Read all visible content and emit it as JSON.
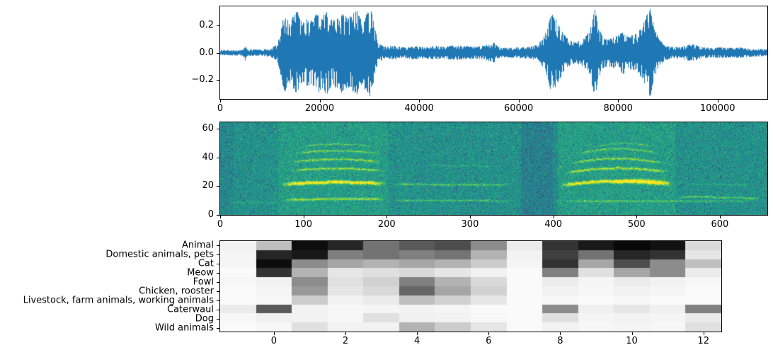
{
  "figure": {
    "background": "#ffffff",
    "description": "Audio event analysis figure: waveform, mel spectrogram, and classifier score heatmap"
  },
  "chart_data": [
    {
      "id": "waveform",
      "type": "line",
      "role": "audio-waveform",
      "title": "",
      "xlabel": "",
      "ylabel": "",
      "line_color": "#1f77b4",
      "grid": false,
      "legend": false,
      "xlim": [
        0,
        110000
      ],
      "ylim": [
        -0.34,
        0.34
      ],
      "xticks": [
        0,
        20000,
        40000,
        60000,
        80000,
        100000
      ],
      "xtick_labels": [
        "0",
        "20000",
        "40000",
        "60000",
        "80000",
        "100000"
      ],
      "yticks": [
        -0.2,
        0.0,
        0.2
      ],
      "ytick_labels": [
        "−0.2",
        "0.0",
        "0.2"
      ],
      "envelope": [
        [
          0,
          0.018
        ],
        [
          2000,
          0.02
        ],
        [
          4600,
          0.022
        ],
        [
          5000,
          0.07
        ],
        [
          5400,
          0.025
        ],
        [
          8000,
          0.022
        ],
        [
          10000,
          0.03
        ],
        [
          11500,
          0.06
        ],
        [
          12200,
          0.18
        ],
        [
          13000,
          0.3
        ],
        [
          13800,
          0.22
        ],
        [
          14500,
          0.26
        ],
        [
          15500,
          0.31
        ],
        [
          16500,
          0.22
        ],
        [
          17500,
          0.26
        ],
        [
          18500,
          0.24
        ],
        [
          19500,
          0.31
        ],
        [
          20500,
          0.26
        ],
        [
          21500,
          0.33
        ],
        [
          22500,
          0.24
        ],
        [
          23500,
          0.27
        ],
        [
          24500,
          0.3
        ],
        [
          25500,
          0.26
        ],
        [
          26500,
          0.29
        ],
        [
          27500,
          0.31
        ],
        [
          28500,
          0.24
        ],
        [
          29500,
          0.29
        ],
        [
          30300,
          0.33
        ],
        [
          31000,
          0.2
        ],
        [
          31800,
          0.07
        ],
        [
          33000,
          0.045
        ],
        [
          35000,
          0.05
        ],
        [
          37000,
          0.04
        ],
        [
          39000,
          0.05
        ],
        [
          41000,
          0.04
        ],
        [
          43000,
          0.05
        ],
        [
          45000,
          0.045
        ],
        [
          47000,
          0.055
        ],
        [
          49000,
          0.05
        ],
        [
          51000,
          0.045
        ],
        [
          53000,
          0.05
        ],
        [
          55000,
          0.075
        ],
        [
          56000,
          0.04
        ],
        [
          58000,
          0.035
        ],
        [
          60000,
          0.04
        ],
        [
          62000,
          0.045
        ],
        [
          64000,
          0.06
        ],
        [
          65500,
          0.15
        ],
        [
          66500,
          0.29
        ],
        [
          67500,
          0.25
        ],
        [
          68500,
          0.18
        ],
        [
          69500,
          0.12
        ],
        [
          70500,
          0.09
        ],
        [
          71500,
          0.08
        ],
        [
          73000,
          0.1
        ],
        [
          74300,
          0.16
        ],
        [
          75300,
          0.33
        ],
        [
          76000,
          0.22
        ],
        [
          76800,
          0.12
        ],
        [
          78000,
          0.1
        ],
        [
          79500,
          0.12
        ],
        [
          81000,
          0.16
        ],
        [
          82000,
          0.12
        ],
        [
          83500,
          0.14
        ],
        [
          84800,
          0.19
        ],
        [
          85800,
          0.3
        ],
        [
          86500,
          0.33
        ],
        [
          87300,
          0.18
        ],
        [
          88300,
          0.1
        ],
        [
          89300,
          0.06
        ],
        [
          91000,
          0.04
        ],
        [
          93000,
          0.05
        ],
        [
          95000,
          0.065
        ],
        [
          97000,
          0.04
        ],
        [
          99000,
          0.035
        ],
        [
          101000,
          0.04
        ],
        [
          103000,
          0.035
        ],
        [
          105000,
          0.04
        ],
        [
          107000,
          0.03
        ],
        [
          110000,
          0.025
        ]
      ]
    },
    {
      "id": "spectrogram",
      "type": "heatmap",
      "role": "mel-spectrogram",
      "title": "",
      "xlabel": "",
      "ylabel": "",
      "colormap": "viridis",
      "grid": false,
      "legend": false,
      "xlim": [
        0,
        657
      ],
      "ylim": [
        0,
        64.5
      ],
      "xticks": [
        0,
        100,
        200,
        300,
        400,
        500,
        600
      ],
      "xtick_labels": [
        "0",
        "100",
        "200",
        "300",
        "400",
        "500",
        "600"
      ],
      "yticks": [
        0,
        20,
        40,
        60
      ],
      "ytick_labels": [
        "0",
        "20",
        "40",
        "60"
      ],
      "intensity_regions": [
        [
          70,
          200,
          0.05
        ],
        [
          400,
          545,
          0.05
        ],
        [
          362,
          404,
          -0.07
        ],
        [
          0,
          15,
          -0.04
        ]
      ],
      "harmonics": [
        {
          "x0": 8,
          "x1": 70,
          "y0": 9,
          "y1": 9,
          "arc": 0,
          "amp": 0.1,
          "w": 1.5
        },
        {
          "x0": 72,
          "x1": 200,
          "y0": 21.5,
          "y1": 22,
          "arc": 1.2,
          "amp": 0.55,
          "w": 3.2
        },
        {
          "x0": 74,
          "x1": 200,
          "y0": 10.5,
          "y1": 11,
          "arc": 0.5,
          "amp": 0.3,
          "w": 2.4
        },
        {
          "x0": 82,
          "x1": 196,
          "y0": 31,
          "y1": 31,
          "arc": 1.5,
          "amp": 0.3,
          "w": 2.0
        },
        {
          "x0": 84,
          "x1": 194,
          "y0": 37,
          "y1": 37,
          "arc": 2,
          "amp": 0.27,
          "w": 2.0
        },
        {
          "x0": 88,
          "x1": 190,
          "y0": 43,
          "y1": 43,
          "arc": 2,
          "amp": 0.24,
          "w": 1.8
        },
        {
          "x0": 95,
          "x1": 185,
          "y0": 48,
          "y1": 48,
          "arc": 1.5,
          "amp": 0.18,
          "w": 1.6
        },
        {
          "x0": 200,
          "x1": 352,
          "y0": 22,
          "y1": 21.5,
          "arc": -0.5,
          "amp": 0.22,
          "w": 2.0
        },
        {
          "x0": 200,
          "x1": 352,
          "y0": 10.5,
          "y1": 10,
          "arc": 0,
          "amp": 0.2,
          "w": 1.8
        },
        {
          "x0": 240,
          "x1": 330,
          "y0": 35,
          "y1": 34,
          "arc": 0,
          "amp": 0.1,
          "w": 1.5
        },
        {
          "x0": 405,
          "x1": 545,
          "y0": 20.5,
          "y1": 21,
          "arc": 3,
          "amp": 0.5,
          "w": 3.2
        },
        {
          "x0": 468,
          "x1": 542,
          "y0": 22.5,
          "y1": 22.5,
          "arc": 1.5,
          "amp": 0.3,
          "w": 3.5
        },
        {
          "x0": 412,
          "x1": 540,
          "y0": 29.5,
          "y1": 30,
          "arc": 3,
          "amp": 0.33,
          "w": 2.4
        },
        {
          "x0": 418,
          "x1": 535,
          "y0": 36,
          "y1": 36,
          "arc": 3.5,
          "amp": 0.28,
          "w": 2.0
        },
        {
          "x0": 425,
          "x1": 528,
          "y0": 42.5,
          "y1": 43,
          "arc": 3.5,
          "amp": 0.22,
          "w": 1.8
        },
        {
          "x0": 450,
          "x1": 520,
          "y0": 48,
          "y1": 48,
          "arc": 2,
          "amp": 0.14,
          "w": 1.6
        },
        {
          "x0": 400,
          "x1": 650,
          "y0": 10,
          "y1": 10,
          "arc": 0,
          "amp": 0.18,
          "w": 1.8
        },
        {
          "x0": 545,
          "x1": 652,
          "y0": 12.5,
          "y1": 11.5,
          "arc": 0.5,
          "amp": 0.22,
          "w": 2.0
        },
        {
          "x0": 560,
          "x1": 640,
          "y0": 22,
          "y1": 21,
          "arc": 0,
          "amp": 0.1,
          "w": 1.6
        }
      ]
    },
    {
      "id": "class-scores",
      "type": "heatmap",
      "role": "classifier-score-heatmap",
      "title": "",
      "xlabel": "",
      "ylabel": "",
      "colormap": "gray_r",
      "grid": false,
      "legend": false,
      "xlim": [
        -1.5,
        12.5
      ],
      "xticks": [
        0,
        2,
        4,
        6,
        8,
        10,
        12
      ],
      "xtick_labels": [
        "0",
        "2",
        "4",
        "6",
        "8",
        "10",
        "12"
      ],
      "categories": [
        "Animal",
        "Domestic animals, pets",
        "Cat",
        "Meow",
        "Fowl",
        "Chicken, rooster",
        "Livestock, farm animals, working animals",
        "Caterwaul",
        "Dog",
        "Wild animals"
      ],
      "frame_centers": [
        -1,
        0,
        1,
        2,
        3,
        4,
        5,
        6,
        7,
        8,
        9,
        10,
        11,
        12
      ],
      "values": [
        [
          0.05,
          0.25,
          0.95,
          0.85,
          0.55,
          0.65,
          0.7,
          0.45,
          0.08,
          0.8,
          0.9,
          0.97,
          0.93,
          0.15
        ],
        [
          0.04,
          0.85,
          0.9,
          0.5,
          0.55,
          0.5,
          0.55,
          0.3,
          0.05,
          0.75,
          0.55,
          0.85,
          0.8,
          0.1
        ],
        [
          0.04,
          0.95,
          0.45,
          0.35,
          0.3,
          0.35,
          0.3,
          0.2,
          0.04,
          0.8,
          0.35,
          0.7,
          0.45,
          0.25
        ],
        [
          0.02,
          0.8,
          0.3,
          0.1,
          0.12,
          0.15,
          0.1,
          0.05,
          0.02,
          0.5,
          0.12,
          0.35,
          0.45,
          0.08
        ],
        [
          0.03,
          0.05,
          0.45,
          0.12,
          0.18,
          0.5,
          0.3,
          0.15,
          0.02,
          0.08,
          0.04,
          0.08,
          0.05,
          0.03
        ],
        [
          0.02,
          0.04,
          0.4,
          0.1,
          0.15,
          0.6,
          0.35,
          0.18,
          0.02,
          0.05,
          0.03,
          0.05,
          0.04,
          0.02
        ],
        [
          0.02,
          0.03,
          0.2,
          0.05,
          0.08,
          0.25,
          0.18,
          0.1,
          0.02,
          0.03,
          0.02,
          0.03,
          0.02,
          0.02
        ],
        [
          0.08,
          0.65,
          0.05,
          0.03,
          0.04,
          0.05,
          0.04,
          0.02,
          0.02,
          0.45,
          0.06,
          0.1,
          0.06,
          0.5
        ],
        [
          0.03,
          0.06,
          0.05,
          0.03,
          0.12,
          0.06,
          0.05,
          0.03,
          0.02,
          0.12,
          0.04,
          0.05,
          0.04,
          0.08
        ],
        [
          0.02,
          0.03,
          0.12,
          0.05,
          0.05,
          0.3,
          0.2,
          0.1,
          0.02,
          0.05,
          0.03,
          0.04,
          0.03,
          0.12
        ]
      ]
    }
  ]
}
